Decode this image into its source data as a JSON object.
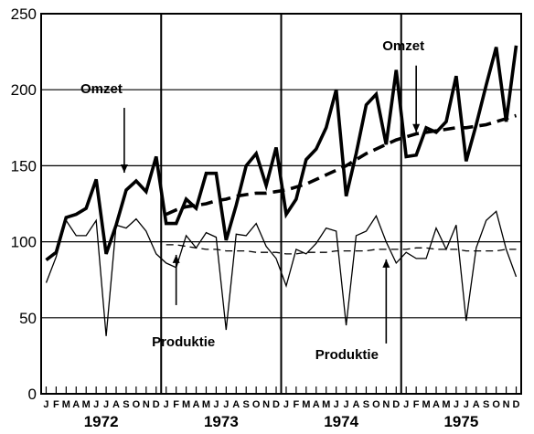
{
  "chart_data": {
    "type": "line",
    "title": "",
    "xlabel": "",
    "ylabel": "",
    "ylim": [
      0,
      250
    ],
    "yticks": [
      0,
      50,
      100,
      150,
      200,
      250
    ],
    "grid": true,
    "month_labels": [
      "J",
      "F",
      "M",
      "A",
      "M",
      "J",
      "J",
      "A",
      "S",
      "O",
      "N",
      "D"
    ],
    "years": [
      "1972",
      "1973",
      "1974",
      "1975"
    ],
    "series": [
      {
        "name": "Omzet",
        "style": "thick-solid",
        "values": [
          88,
          93,
          116,
          118,
          122,
          141,
          92,
          111,
          134,
          140,
          133,
          156,
          112,
          112,
          128,
          122,
          145,
          145,
          101,
          124,
          150,
          158,
          137,
          162,
          118,
          128,
          154,
          161,
          175,
          200,
          130,
          158,
          190,
          197,
          164,
          213,
          156,
          157,
          175,
          172,
          179,
          209,
          153,
          177,
          203,
          228,
          179,
          229
        ]
      },
      {
        "name": "Omzet trend",
        "style": "thick-dashed",
        "start_index": 12,
        "values": [
          118,
          121,
          123,
          124,
          125,
          127,
          128,
          130,
          131,
          132,
          132,
          133,
          134,
          136,
          138,
          141,
          144,
          147,
          150,
          154,
          158,
          161,
          164,
          167,
          169,
          171,
          172,
          173,
          174,
          175,
          175,
          176,
          177,
          179,
          181,
          183
        ]
      },
      {
        "name": "Produktie",
        "style": "thin-solid",
        "values": [
          73,
          90,
          114,
          104,
          104,
          114,
          38,
          111,
          109,
          115,
          107,
          92,
          86,
          83,
          104,
          96,
          106,
          103,
          42,
          105,
          104,
          112,
          97,
          89,
          71,
          95,
          92,
          99,
          109,
          107,
          45,
          104,
          107,
          117,
          100,
          86,
          93,
          89,
          89,
          109,
          95,
          111,
          48,
          96,
          114,
          120,
          95,
          77
        ]
      },
      {
        "name": "Produktie trend",
        "style": "thin-dashed",
        "start_index": 12,
        "values": [
          98,
          98,
          97,
          96,
          95,
          95,
          94,
          94,
          94,
          93,
          93,
          93,
          92,
          92,
          93,
          93,
          93,
          94,
          94,
          94,
          94,
          95,
          95,
          95,
          95,
          96,
          96,
          95,
          95,
          95,
          94,
          94,
          94,
          94,
          95,
          95
        ]
      }
    ],
    "annotations": [
      {
        "text": "Omzet",
        "near_series": "Omzet",
        "near_index": 9
      },
      {
        "text": "Omzet",
        "near_series": "Omzet",
        "near_index": 37
      },
      {
        "text": "Produktie",
        "near_series": "Produktie trend",
        "near_index": 13
      },
      {
        "text": "Produktie",
        "near_series": "Produktie trend",
        "near_index": 34
      }
    ]
  }
}
